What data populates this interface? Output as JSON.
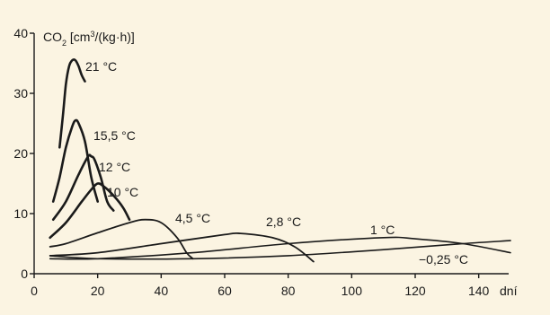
{
  "chart_data": {
    "type": "line",
    "title": "",
    "ylabel_main": "CO",
    "ylabel_sub": "2",
    "ylabel_unit_open": " [cm",
    "ylabel_sup": "3",
    "ylabel_unit_close": "/(kg·h)]",
    "xlabel": "dní",
    "xlim": [
      0,
      150
    ],
    "ylim": [
      0,
      40
    ],
    "x_ticks": [
      0,
      20,
      40,
      60,
      80,
      100,
      120,
      140
    ],
    "y_ticks": [
      0,
      10,
      20,
      30,
      40
    ],
    "grid": false,
    "background": "#fbf4e2",
    "line_color": "#1a1a1a",
    "series": [
      {
        "name": "21 °C",
        "x": [
          8,
          9,
          10,
          11,
          12,
          13,
          14,
          15,
          16
        ],
        "y": [
          21,
          26,
          31.5,
          34.5,
          35.5,
          35.5,
          34.5,
          33,
          32
        ]
      },
      {
        "name": "15,5 °C",
        "x": [
          6,
          8,
          10,
          12,
          13,
          14,
          16,
          18,
          20
        ],
        "y": [
          12,
          16,
          21,
          24.5,
          25.5,
          25,
          22,
          16,
          12
        ]
      },
      {
        "name": "12 °C",
        "x": [
          6,
          10,
          14,
          17,
          18,
          19,
          21,
          23,
          25
        ],
        "y": [
          9,
          12,
          16.5,
          19.5,
          19.5,
          19,
          16,
          12,
          10.5
        ]
      },
      {
        "name": "10 °C",
        "x": [
          5,
          10,
          15,
          18,
          20,
          22,
          25,
          28,
          30
        ],
        "y": [
          6,
          8.5,
          12,
          14,
          15,
          14.5,
          13,
          11,
          9
        ]
      },
      {
        "name": "4,5 °C",
        "x": [
          5,
          10,
          20,
          30,
          35,
          40,
          45,
          48,
          50
        ],
        "y": [
          4.5,
          5,
          6.8,
          8.5,
          9,
          8.5,
          6,
          3.5,
          2.5
        ]
      },
      {
        "name": "2,8 °C",
        "x": [
          5,
          20,
          40,
          60,
          65,
          75,
          82,
          88
        ],
        "y": [
          3,
          3.5,
          5,
          6.5,
          6.7,
          6,
          4.5,
          2
        ]
      },
      {
        "name": "1 °C",
        "x": [
          5,
          20,
          50,
          80,
          110,
          120,
          135,
          150
        ],
        "y": [
          2.5,
          2.5,
          3.5,
          5,
          6,
          5.8,
          5,
          3.5
        ]
      },
      {
        "name": "−0,25 °C",
        "x": [
          5,
          20,
          50,
          80,
          110,
          135,
          150
        ],
        "y": [
          3,
          2.5,
          2.5,
          3,
          4,
          5,
          5.5
        ]
      }
    ]
  }
}
